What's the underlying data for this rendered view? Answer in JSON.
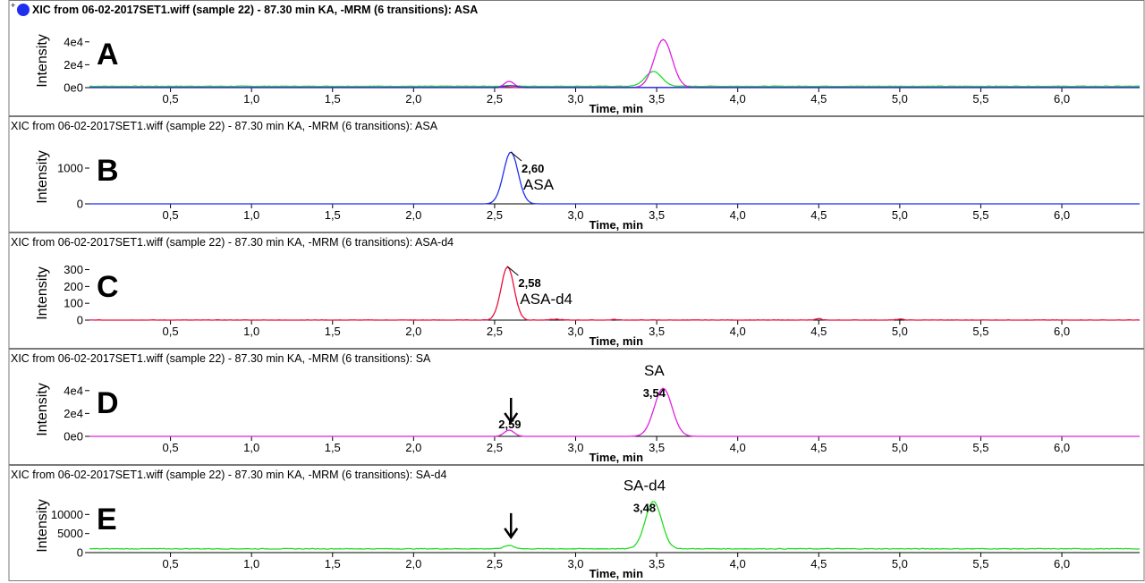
{
  "figure": {
    "x_axis": {
      "label": "Time, min",
      "range": [
        0,
        6.48
      ],
      "ticks": [
        0.5,
        1.0,
        1.5,
        2.0,
        2.5,
        3.0,
        3.5,
        4.0,
        4.5,
        5.0,
        5.5,
        6.0
      ],
      "tick_labels": [
        "0,5",
        "1,0",
        "1,5",
        "2,0",
        "2,5",
        "3,0",
        "3,5",
        "4,0",
        "4,5",
        "5,0",
        "5,5",
        "6,0"
      ]
    },
    "y_axis_label": "Intensity",
    "colors": {
      "blue": "#1f2ff0",
      "red": "#e8103c",
      "magenta": "#e020e0",
      "green": "#22dd22",
      "border": "#7a7a7a",
      "baseline_blue": "#1a2bd0"
    }
  },
  "chart_data": [
    {
      "type": "line",
      "panel": "A",
      "title": "XIC from 06-02-2017SET1.wiff (sample 22) - 87.30 min KA, -MRM (6 transitions): ASA",
      "title_bold": true,
      "title_marker": "+",
      "ylim": [
        0,
        50000
      ],
      "yticks": [
        0,
        20000,
        40000
      ],
      "ytick_labels": [
        "0e0",
        "2e4",
        "4e4"
      ],
      "series": [
        {
          "color": "green",
          "baseline": 1200,
          "noise": 400,
          "peaks": [
            [
              2.59,
              800,
              0.03
            ],
            [
              3.48,
              13000,
              0.05
            ]
          ]
        },
        {
          "color": "magenta",
          "baseline": 0,
          "noise": 0,
          "peaks": [
            [
              2.59,
              5500,
              0.03
            ],
            [
              3.54,
              42000,
              0.055
            ]
          ]
        },
        {
          "color": "red",
          "baseline": 0,
          "noise": 0,
          "peaks": [
            [
              2.58,
              300,
              0.03
            ]
          ]
        },
        {
          "color": "blue",
          "baseline": 150,
          "noise": 0,
          "peaks": [
            [
              2.6,
              1450,
              0.04
            ]
          ]
        }
      ],
      "annotations": []
    },
    {
      "type": "line",
      "panel": "B",
      "title": "XIC from 06-02-2017SET1.wiff (sample 22) - 87.30 min KA, -MRM (6 transitions): ASA",
      "title_bold": false,
      "ylim": [
        0,
        1600
      ],
      "yticks": [
        0,
        1000
      ],
      "ytick_labels": [
        "0",
        "1000"
      ],
      "series": [
        {
          "color": "blue",
          "baseline": 0,
          "noise": 0,
          "peaks": [
            [
              2.6,
              1450,
              0.045
            ]
          ]
        }
      ],
      "annotations": [
        {
          "x": 2.6,
          "y": 1450,
          "rt": "2,60",
          "name": "ASA"
        }
      ]
    },
    {
      "type": "line",
      "panel": "C",
      "title": "XIC from 06-02-2017SET1.wiff (sample 22) - 87.30 min KA, -MRM (6 transitions): ASA-d4",
      "title_bold": false,
      "ylim": [
        0,
        340
      ],
      "yticks": [
        0,
        100,
        200,
        300
      ],
      "ytick_labels": [
        "0",
        "100",
        "200",
        "300"
      ],
      "series": [
        {
          "color": "red",
          "baseline": 0,
          "noise": 3,
          "peaks": [
            [
              2.58,
              318,
              0.04
            ],
            [
              2.88,
              5,
              0.03
            ],
            [
              3.24,
              4,
              0.02
            ],
            [
              4.5,
              8,
              0.02
            ],
            [
              5.0,
              6,
              0.02
            ]
          ]
        }
      ],
      "annotations": [
        {
          "x": 2.58,
          "y": 318,
          "rt": "2,58",
          "name": "ASA-d4"
        }
      ]
    },
    {
      "type": "line",
      "panel": "D",
      "title": "XIC from 06-02-2017SET1.wiff (sample 22) - 87.30 min KA, -MRM (6 transitions): SA",
      "title_bold": false,
      "ylim": [
        0,
        50000
      ],
      "yticks": [
        0,
        20000,
        40000
      ],
      "ytick_labels": [
        "0e0",
        "2e4",
        "4e4"
      ],
      "series": [
        {
          "color": "magenta",
          "baseline": 0,
          "noise": 0,
          "peaks": [
            [
              2.59,
              5500,
              0.03
            ],
            [
              3.54,
              42000,
              0.055
            ]
          ]
        }
      ],
      "annotations": [
        {
          "x": 2.59,
          "y": 5500,
          "rt": "2,59",
          "name": "",
          "arrow": true
        },
        {
          "x": 3.54,
          "y": 42000,
          "rt": "3,54",
          "name": "SA",
          "name_above": true
        }
      ]
    },
    {
      "type": "line",
      "panel": "E",
      "title": "XIC from 06-02-2017SET1.wiff (sample 22) - 87.30 min KA, -MRM (6 transitions): SA-d4",
      "title_bold": false,
      "ylim": [
        0,
        15000
      ],
      "yticks": [
        0,
        5000,
        10000
      ],
      "ytick_labels": [
        "0",
        "5000",
        "10000"
      ],
      "series": [
        {
          "color": "green",
          "baseline": 1000,
          "noise": 180,
          "peaks": [
            [
              2.59,
              900,
              0.03
            ],
            [
              3.48,
              12500,
              0.05
            ]
          ]
        }
      ],
      "annotations": [
        {
          "x": 2.59,
          "y": 1900,
          "rt": "",
          "name": "",
          "arrow": true
        },
        {
          "x": 3.48,
          "y": 13000,
          "rt": "3,48",
          "name": "SA-d4",
          "name_above": true
        }
      ]
    }
  ]
}
